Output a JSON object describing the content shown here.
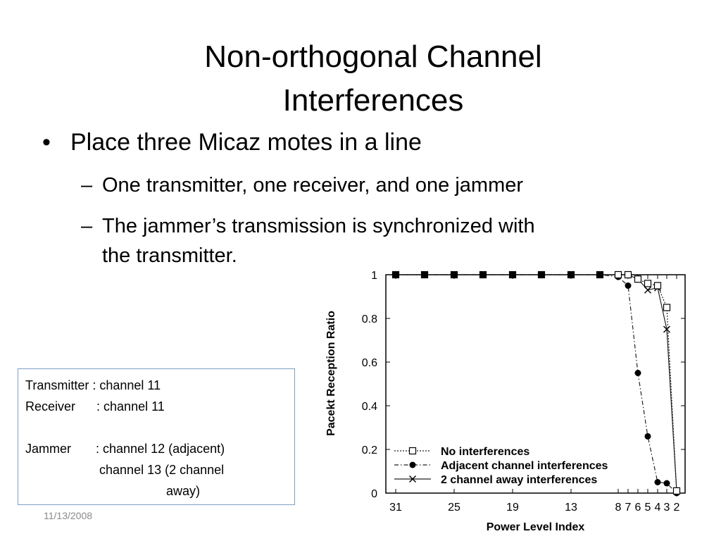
{
  "slide": {
    "title_line1": "Non-orthogonal Channel",
    "title_line2": "Interferences",
    "bullet_marker": "•",
    "bullet": "Place three Micaz motes in a line",
    "sub_marker": "–",
    "sub1": "One transmitter, one receiver, and one jammer",
    "sub2_line1": "The jammer’s transmission is synchronized with",
    "sub2_line2": "the transmitter.",
    "date": "11/13/2008"
  },
  "infobox": {
    "line1": "Transmitter : channel 11",
    "line2": "Receiver      : channel 11",
    "line3": "",
    "line4": "Jammer       : channel 12 (adjacent)",
    "line5": "                     channel 13 (2 channel",
    "line6": "                                        away)"
  },
  "chart_data": {
    "type": "line",
    "xlabel": "Power Level Index",
    "ylabel": "Pacekt Reception Ratio",
    "x_tick_labels": [
      "31",
      "25",
      "19",
      "13",
      "8",
      "7",
      "6",
      "5",
      "4",
      "3",
      "2"
    ],
    "y_tick_labels": [
      "0",
      "0.2",
      "0.4",
      "0.6",
      "0.8",
      "1"
    ],
    "ylim": [
      0,
      1
    ],
    "x": [
      31,
      28,
      25,
      22,
      19,
      16,
      13,
      10,
      8,
      7,
      6,
      5,
      4,
      3,
      2
    ],
    "legend_position": "bottom-left",
    "series": [
      {
        "name": "No interferences",
        "marker": "open-square",
        "line": "dotted",
        "values": [
          1,
          1,
          1,
          1,
          1,
          1,
          1,
          1,
          1,
          1,
          0.98,
          0.96,
          0.95,
          0.85,
          0.01
        ]
      },
      {
        "name": "Adjacent channel interferences",
        "marker": "filled-circle",
        "line": "dash-dot",
        "values": [
          1,
          1,
          1,
          1,
          1,
          1,
          1,
          1,
          0.99,
          0.95,
          0.55,
          0.26,
          0.05,
          0.045,
          0
        ]
      },
      {
        "name": "2 channel away interferences",
        "marker": "x",
        "line": "solid",
        "values": [
          1,
          1,
          1,
          1,
          1,
          1,
          1,
          1,
          1,
          1,
          0.98,
          0.93,
          0.94,
          0.75,
          0.01
        ]
      }
    ]
  }
}
